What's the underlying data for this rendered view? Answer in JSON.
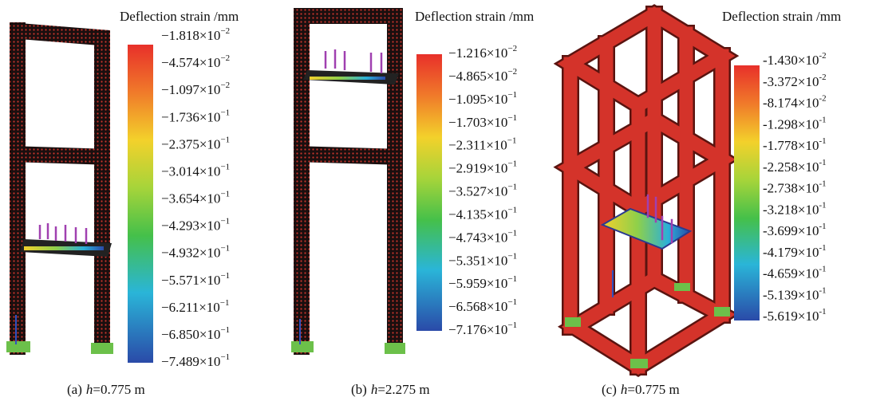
{
  "panels": [
    {
      "legend_title": "Deflection strain /mm",
      "colorbar_labels": [
        {
          "coefficient": "−1.818×10",
          "exponent": "−2"
        },
        {
          "coefficient": "−4.574×10",
          "exponent": "−2"
        },
        {
          "coefficient": "−1.097×10",
          "exponent": "−2"
        },
        {
          "coefficient": "−1.736×10",
          "exponent": "−1"
        },
        {
          "coefficient": "−2.375×10",
          "exponent": "−1"
        },
        {
          "coefficient": "−3.014×10",
          "exponent": "−1"
        },
        {
          "coefficient": "−3.654×10",
          "exponent": "−1"
        },
        {
          "coefficient": "−4.293×10",
          "exponent": "−1"
        },
        {
          "coefficient": "−4.932×10",
          "exponent": "−1"
        },
        {
          "coefficient": "−5.571×10",
          "exponent": "−1"
        },
        {
          "coefficient": "−6.211×10",
          "exponent": "−1"
        },
        {
          "coefficient": "−6.850×10",
          "exponent": "−1"
        },
        {
          "coefficient": "−7.489×10",
          "exponent": "−1"
        }
      ],
      "caption": {
        "label": "(a)",
        "variable": "h",
        "value": "=0.775 m"
      }
    },
    {
      "legend_title": "Deflection strain /mm",
      "colorbar_labels": [
        {
          "coefficient": "−1.216×10",
          "exponent": "−2"
        },
        {
          "coefficient": "−4.865×10",
          "exponent": "−2"
        },
        {
          "coefficient": "−1.095×10",
          "exponent": "−1"
        },
        {
          "coefficient": "−1.703×10",
          "exponent": "−1"
        },
        {
          "coefficient": "−2.311×10",
          "exponent": "−1"
        },
        {
          "coefficient": "−2.919×10",
          "exponent": "−1"
        },
        {
          "coefficient": "−3.527×10",
          "exponent": "−1"
        },
        {
          "coefficient": "−4.135×10",
          "exponent": "−1"
        },
        {
          "coefficient": "−4.743×10",
          "exponent": "−1"
        },
        {
          "coefficient": "−5.351×10",
          "exponent": "−1"
        },
        {
          "coefficient": "−5.959×10",
          "exponent": "−1"
        },
        {
          "coefficient": "−6.568×10",
          "exponent": "−1"
        },
        {
          "coefficient": "−7.176×10",
          "exponent": "−1"
        }
      ],
      "caption": {
        "label": "(b)",
        "variable": "h",
        "value": "=2.275 m"
      }
    },
    {
      "legend_title": "Deflection strain /mm",
      "colorbar_labels": [
        {
          "coefficient": "-1.430×10",
          "exponent": "-2"
        },
        {
          "coefficient": "-3.372×10",
          "exponent": "-2"
        },
        {
          "coefficient": "-8.174×10",
          "exponent": "-2"
        },
        {
          "coefficient": "-1.298×10",
          "exponent": "-1"
        },
        {
          "coefficient": "-1.778×10",
          "exponent": "-1"
        },
        {
          "coefficient": "-2.258×10",
          "exponent": "-1"
        },
        {
          "coefficient": "-2.738×10",
          "exponent": "-1"
        },
        {
          "coefficient": "-3.218×10",
          "exponent": "-1"
        },
        {
          "coefficient": "-3.699×10",
          "exponent": "-1"
        },
        {
          "coefficient": "-4.179×10",
          "exponent": "-1"
        },
        {
          "coefficient": "-4.659×10",
          "exponent": "-1"
        },
        {
          "coefficient": "-5.139×10",
          "exponent": "-1"
        },
        {
          "coefficient": "-5.619×10",
          "exponent": "-1"
        }
      ],
      "caption": {
        "label": "(c)",
        "variable": "h",
        "value": "=0.775 m"
      }
    }
  ]
}
